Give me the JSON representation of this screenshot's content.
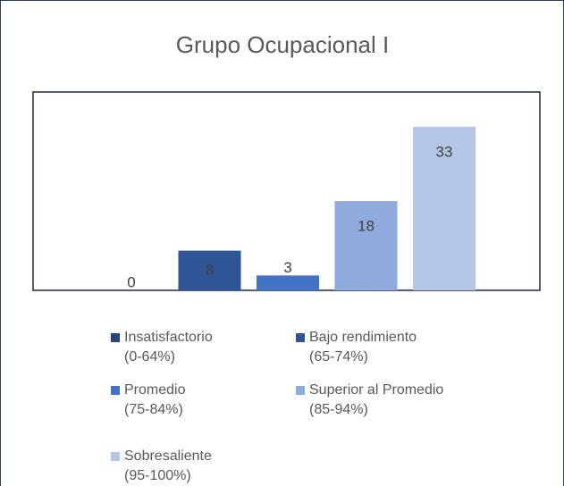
{
  "chart_data": {
    "type": "bar",
    "title": "Grupo Ocupacional I",
    "categories": [
      null
    ],
    "series": [
      {
        "name": "Insatisfactorio (0-64%)",
        "color": "#264478",
        "values": [
          0
        ]
      },
      {
        "name": "Bajo rendimiento (65-74%)",
        "color": "#2f5597",
        "values": [
          8
        ]
      },
      {
        "name": "Promedio (75-84%)",
        "color": "#4472c4",
        "values": [
          3
        ]
      },
      {
        "name": "Superior al Promedio (85-94%)",
        "color": "#8faadc",
        "values": [
          18
        ]
      },
      {
        "name": "Sobresaliente (95-100%)",
        "color": "#b4c7e7",
        "values": [
          33
        ]
      }
    ],
    "ylim": [
      0,
      40
    ],
    "grid": false,
    "legend": "bottom"
  }
}
